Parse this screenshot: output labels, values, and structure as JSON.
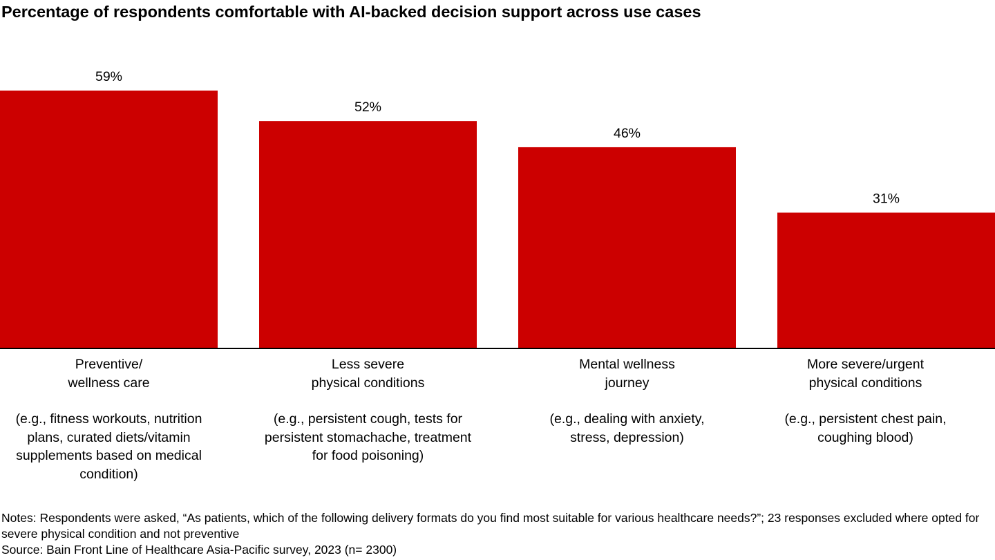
{
  "chart_data": {
    "type": "bar",
    "title": "Percentage of respondents comfortable with AI-backed decision support across use cases",
    "categories": [
      {
        "name": "Preventive/\nwellness care",
        "example": "(e.g., fitness workouts, nutrition\nplans, curated diets/vitamin\nsupplements based on medical\ncondition)"
      },
      {
        "name": "Less severe\nphysical conditions",
        "example": "(e.g., persistent cough, tests for\npersistent stomachache, treatment\nfor food poisoning)"
      },
      {
        "name": "Mental wellness\njourney",
        "example": "(e.g., dealing with anxiety,\nstress, depression)"
      },
      {
        "name": "More severe/urgent\nphysical conditions",
        "example": "(e.g., persistent chest pain,\ncoughing blood)"
      }
    ],
    "values": [
      59,
      52,
      46,
      31
    ],
    "data_labels": [
      "59%",
      "52%",
      "46%",
      "31%"
    ],
    "unit": "%",
    "ylim": [
      0,
      59
    ],
    "xlabel": "",
    "ylabel": "",
    "grid": false,
    "legend": "none",
    "bar_color": "#cc0000",
    "axis_color": "#000000"
  },
  "notes": "Notes: Respondents were asked, “As patients, which of the following delivery formats do you find most suitable for various healthcare needs?”; 23 responses excluded where opted for severe physical condition and not preventive",
  "source": "Source: Bain Front Line of Healthcare Asia-Pacific survey, 2023 (n= 2300)"
}
